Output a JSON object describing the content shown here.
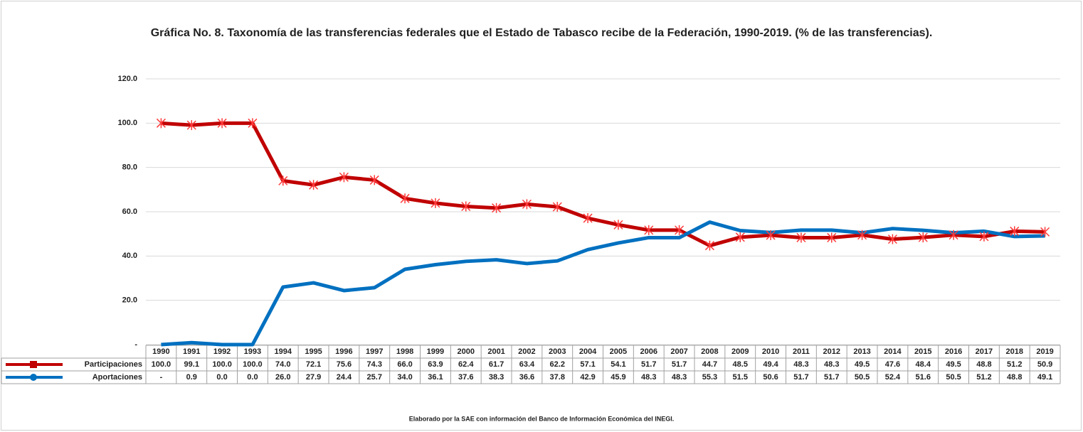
{
  "chart_data": {
    "type": "line",
    "title": "Gráfica No. 8. Taxonomía de las transferencias federales que el Estado de Tabasco recibe de la Federación, 1990-2019. (% de las transferencias).",
    "categories": [
      "1990",
      "1991",
      "1992",
      "1993",
      "1994",
      "1995",
      "1996",
      "1997",
      "1998",
      "1999",
      "2000",
      "2001",
      "2002",
      "2003",
      "2004",
      "2005",
      "2006",
      "2007",
      "2008",
      "2009",
      "2010",
      "2011",
      "2012",
      "2013",
      "2014",
      "2015",
      "2016",
      "2017",
      "2018",
      "2019"
    ],
    "series": [
      {
        "name": "Participaciones",
        "color": "#c00000",
        "values": [
          100.0,
          99.1,
          100.0,
          100.0,
          74.0,
          72.1,
          75.6,
          74.3,
          66.0,
          63.9,
          62.4,
          61.7,
          63.4,
          62.2,
          57.1,
          54.1,
          51.7,
          51.7,
          44.7,
          48.5,
          49.4,
          48.3,
          48.3,
          49.5,
          47.6,
          48.4,
          49.5,
          48.8,
          51.2,
          50.9
        ],
        "value_labels": [
          "100.0",
          "99.1",
          "100.0",
          "100.0",
          "74.0",
          "72.1",
          "75.6",
          "74.3",
          "66.0",
          "63.9",
          "62.4",
          "61.7",
          "63.4",
          "62.2",
          "57.1",
          "54.1",
          "51.7",
          "51.7",
          "44.7",
          "48.5",
          "49.4",
          "48.3",
          "48.3",
          "49.5",
          "47.6",
          "48.4",
          "49.5",
          "48.8",
          "51.2",
          "50.9"
        ]
      },
      {
        "name": "Aportaciones",
        "color": "#0070c0",
        "values": [
          0,
          0.9,
          0.0,
          0.0,
          26.0,
          27.9,
          24.4,
          25.7,
          34.0,
          36.1,
          37.6,
          38.3,
          36.6,
          37.8,
          42.9,
          45.9,
          48.3,
          48.3,
          55.3,
          51.5,
          50.6,
          51.7,
          51.7,
          50.5,
          52.4,
          51.6,
          50.5,
          51.2,
          48.8,
          49.1
        ],
        "value_labels": [
          "-",
          "0.9",
          "0.0",
          "0.0",
          "26.0",
          "27.9",
          "24.4",
          "25.7",
          "34.0",
          "36.1",
          "37.6",
          "38.3",
          "36.6",
          "37.8",
          "42.9",
          "45.9",
          "48.3",
          "48.3",
          "55.3",
          "51.5",
          "50.6",
          "51.7",
          "51.7",
          "50.5",
          "52.4",
          "51.6",
          "50.5",
          "51.2",
          "48.8",
          "49.1"
        ]
      }
    ],
    "ylim": [
      0,
      120
    ],
    "yticks": [
      {
        "value": 0,
        "label": "-"
      },
      {
        "value": 20,
        "label": "20.0"
      },
      {
        "value": 40,
        "label": "40.0"
      },
      {
        "value": 60,
        "label": "60.0"
      },
      {
        "value": 80,
        "label": "80.0"
      },
      {
        "value": 100,
        "label": "100.0"
      },
      {
        "value": 120,
        "label": "120.0"
      }
    ],
    "grid": true,
    "footnote": "Elaborado por la SAE con información del Banco de Información Económica del INEGI."
  }
}
